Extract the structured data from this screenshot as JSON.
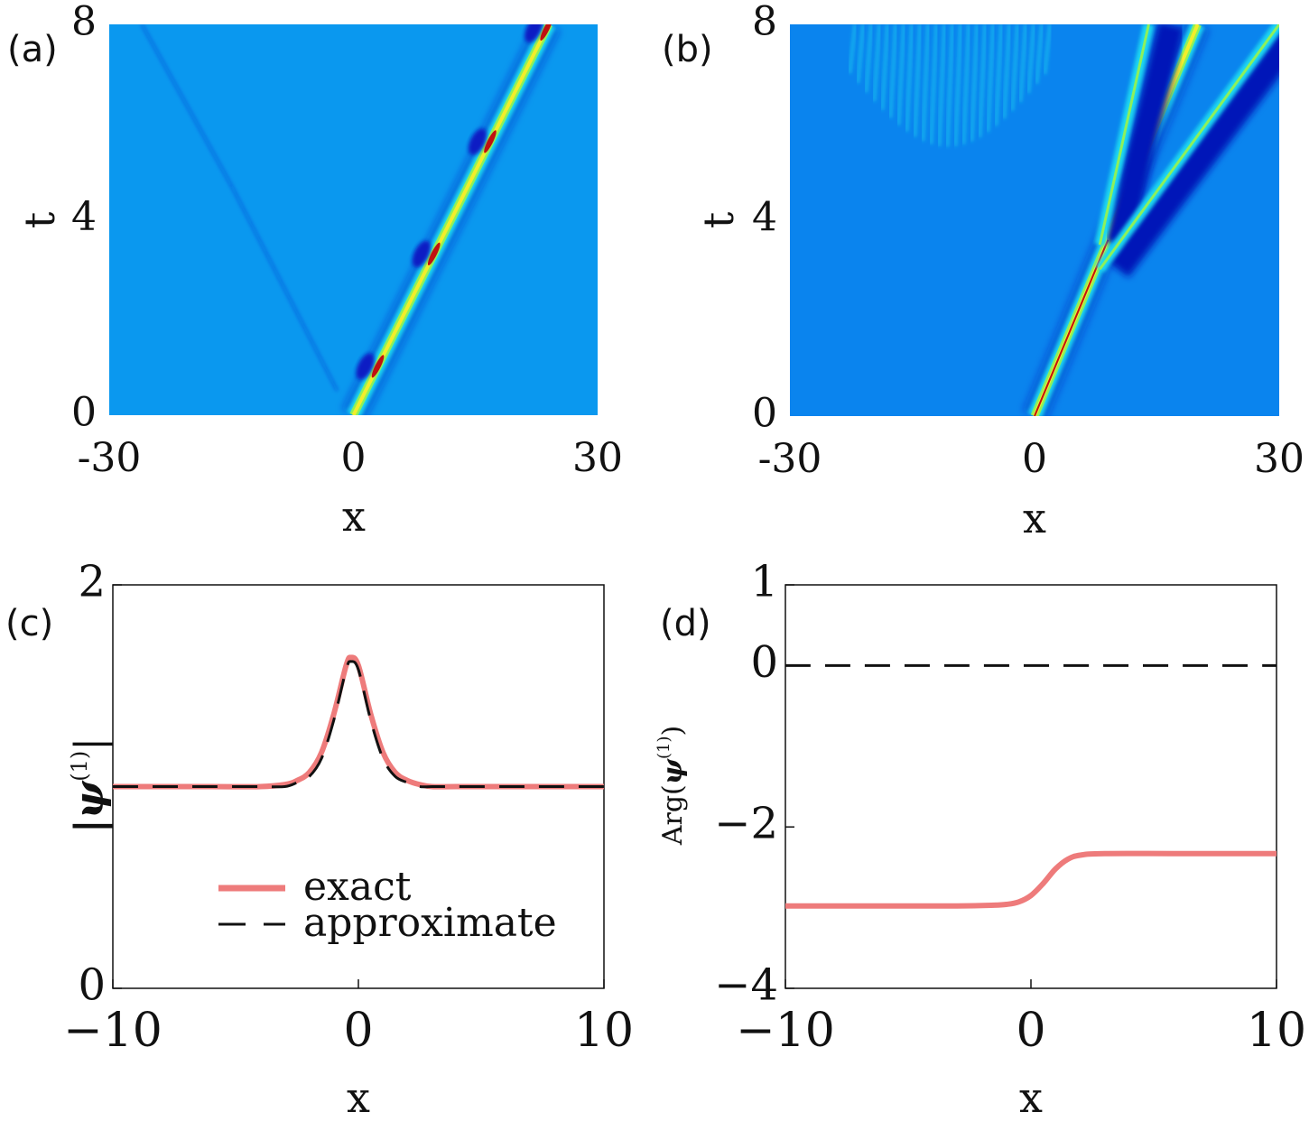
{
  "chart_data": [
    {
      "panel": "(a)",
      "type": "heatmap",
      "xlabel": "x",
      "ylabel": "t",
      "xlim": [
        -30,
        30
      ],
      "ylim": [
        0,
        8
      ],
      "xticks": [
        "-30",
        "0",
        "30"
      ],
      "yticks": [
        "0",
        "4",
        "8"
      ],
      "colors": {
        "background": "#0a98ef",
        "trough": "#0a1fc4",
        "mid": "#1ed8f0",
        "peak_green": "#8ef05a",
        "peak_yellow": "#f2ee2a",
        "peak_red": "#c01010"
      },
      "features": [
        {
          "kind": "soliton",
          "x_start": 0,
          "t_start": 0,
          "x_end": 24,
          "t_end": 8,
          "breathing_period_t": 2.3
        },
        {
          "kind": "faint_trough",
          "x_start": -2,
          "t_start": 0.5,
          "x_end": -15,
          "t_end": 4.7
        },
        {
          "kind": "faint_trough",
          "x_start": -15,
          "t_start": 4.7,
          "x_end": -26,
          "t_end": 8
        }
      ]
    },
    {
      "panel": "(b)",
      "type": "heatmap",
      "xlabel": "x",
      "ylabel": "t",
      "xlim": [
        -30,
        30
      ],
      "ylim": [
        0,
        8
      ],
      "xticks": [
        "-30",
        "0",
        "30"
      ],
      "yticks": [
        "0",
        "4",
        "8"
      ],
      "colors": {
        "background": "#0a84ee",
        "trough": "#0418b8",
        "mid": "#1ed8f0",
        "peak_green": "#8ef05a",
        "peak_yellow": "#f2ee2a",
        "peak_red": "#c01010"
      },
      "features": [
        {
          "kind": "soliton",
          "x_start": 0,
          "t_start": 0,
          "x_end": 20,
          "t_end": 8
        },
        {
          "kind": "branch",
          "x_start": 8,
          "t_start": 3.5,
          "x_end": 14,
          "t_end": 8
        },
        {
          "kind": "branch",
          "x_start": 8,
          "t_start": 3.0,
          "x_end": 30,
          "t_end": 8
        },
        {
          "kind": "ripples",
          "x_from": -22,
          "x_to": 2,
          "t_from": 5.5,
          "t_to": 8
        }
      ]
    },
    {
      "panel": "(c)",
      "type": "line",
      "xlabel": "x",
      "ylabel": "|ψ(1)|",
      "xlim": [
        -10,
        10
      ],
      "ylim": [
        0,
        2
      ],
      "xticks": [
        "−10",
        "0",
        "10"
      ],
      "yticks": [
        "0",
        "2"
      ],
      "legend": "lower-center",
      "series": [
        {
          "name": "exact",
          "color": "#ee7b7b",
          "style": "solid",
          "x": [
            -10,
            -8,
            -6,
            -4,
            -3,
            -2.5,
            -2,
            -1.5,
            -1,
            -0.5,
            -0.3,
            0,
            0.5,
            1,
            1.5,
            2,
            2.5,
            3,
            4,
            6,
            8,
            10
          ],
          "y": [
            1.0,
            1.0,
            1.0,
            1.0,
            1.01,
            1.03,
            1.07,
            1.17,
            1.36,
            1.6,
            1.64,
            1.6,
            1.36,
            1.17,
            1.07,
            1.03,
            1.01,
            1.0,
            1.0,
            1.0,
            1.0,
            1.0
          ]
        },
        {
          "name": "approximate",
          "color": "#111111",
          "style": "dashed",
          "x": [
            -10,
            -8,
            -6,
            -4,
            -3,
            -2.5,
            -2,
            -1.5,
            -1,
            -0.5,
            -0.3,
            0,
            0.5,
            1,
            1.5,
            2,
            2.5,
            3,
            4,
            6,
            8,
            10
          ],
          "y": [
            1.0,
            1.0,
            1.0,
            1.0,
            1.0,
            1.02,
            1.05,
            1.14,
            1.33,
            1.58,
            1.62,
            1.58,
            1.33,
            1.14,
            1.05,
            1.02,
            1.0,
            1.0,
            1.0,
            1.0,
            1.0,
            1.0
          ]
        }
      ]
    },
    {
      "panel": "(d)",
      "type": "line",
      "xlabel": "x",
      "ylabel": "Arg(ψ(1))",
      "xlim": [
        -10,
        10
      ],
      "ylim": [
        -4,
        1
      ],
      "xticks": [
        "−10",
        "0",
        "10"
      ],
      "yticks": [
        "−4",
        "−2",
        "0",
        "1"
      ],
      "series": [
        {
          "name": "",
          "color": "#ee7b7b",
          "style": "solid",
          "x": [
            -10,
            -6,
            -3,
            -1.5,
            -1,
            -0.5,
            0,
            0.5,
            1,
            1.5,
            2,
            3,
            6,
            10
          ],
          "y": [
            -2.98,
            -2.98,
            -2.98,
            -2.97,
            -2.96,
            -2.93,
            -2.85,
            -2.7,
            -2.52,
            -2.4,
            -2.35,
            -2.33,
            -2.33,
            -2.33
          ]
        },
        {
          "name": "",
          "color": "#111111",
          "style": "dashed",
          "x": [
            -10,
            10
          ],
          "y": [
            0,
            0
          ]
        }
      ]
    }
  ],
  "labels": {
    "a": "(a)",
    "b": "(b)",
    "c": "(c)",
    "d": "(d)",
    "ax_t": "t",
    "ax_x": "x",
    "yc_mag": "|ψ",
    "yc_sup": "(1)",
    "yc_bar": "|",
    "yd_arg": "Arg(",
    "yd_psi": "ψ",
    "yd_sup": "(1)",
    "yd_close": ")"
  }
}
